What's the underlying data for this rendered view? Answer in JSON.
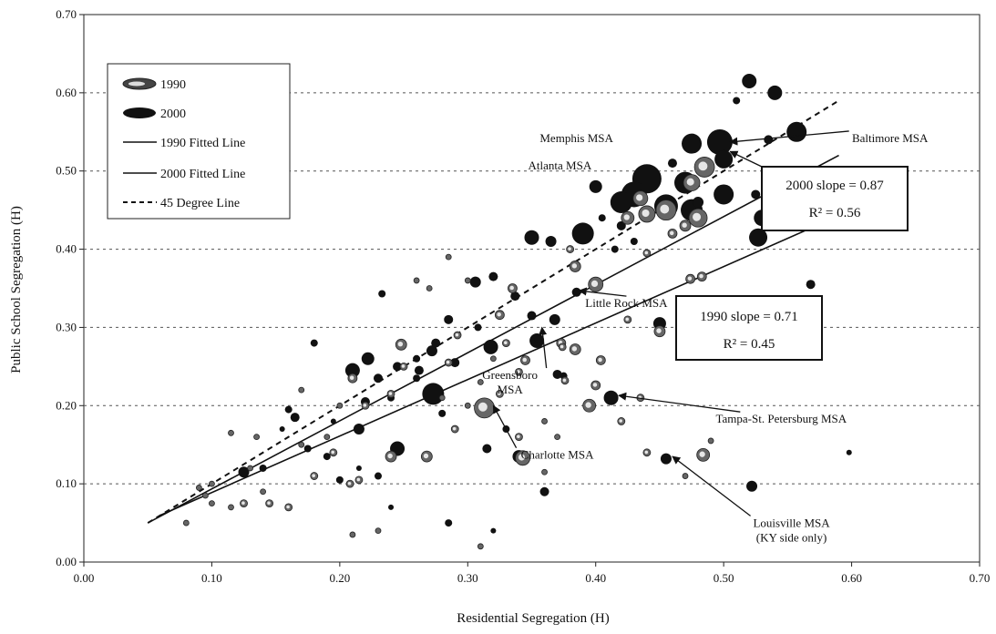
{
  "chart_data": {
    "type": "scatter",
    "title": "",
    "xlabel": "Residential Segregation (H)",
    "ylabel": "Public School Segregation (H)",
    "xlim": [
      0,
      0.7
    ],
    "ylim": [
      0,
      0.7
    ],
    "x_ticks": [
      "0.00",
      "0.10",
      "0.20",
      "0.30",
      "0.40",
      "0.50",
      "0.60",
      "0.70"
    ],
    "y_ticks": [
      "0.00",
      "0.10",
      "0.20",
      "0.30",
      "0.40",
      "0.50",
      "0.60",
      "0.70"
    ],
    "grid": "horizontal dashed",
    "legend": {
      "placement": "top-left",
      "entries": [
        "1990",
        "2000",
        "1990 Fitted Line",
        "2000 Fitted Line",
        "45 Degree Line"
      ]
    },
    "colors": {
      "points_2000": "#111111",
      "points_1990": "#666666",
      "lines": "#111111",
      "grid": "#555555"
    },
    "lines": [
      {
        "name": "1990 Fitted Line",
        "points": [
          [
            0.06,
            0.06
          ],
          [
            0.6,
            0.45
          ]
        ]
      },
      {
        "name": "2000 Fitted Line",
        "points": [
          [
            0.05,
            0.05
          ],
          [
            0.59,
            0.52
          ]
        ]
      },
      {
        "name": "45 Degree Line",
        "points": [
          [
            0.05,
            0.05
          ],
          [
            0.59,
            0.59
          ]
        ]
      }
    ],
    "series": [
      {
        "name": "2000",
        "points": [
          [
            0.52,
            0.615,
            8
          ],
          [
            0.54,
            0.6,
            8
          ],
          [
            0.51,
            0.59,
            4
          ],
          [
            0.557,
            0.55,
            11
          ],
          [
            0.497,
            0.537,
            14
          ],
          [
            0.475,
            0.535,
            11
          ],
          [
            0.535,
            0.54,
            5
          ],
          [
            0.44,
            0.49,
            16
          ],
          [
            0.43,
            0.47,
            14
          ],
          [
            0.42,
            0.46,
            12
          ],
          [
            0.47,
            0.485,
            12
          ],
          [
            0.5,
            0.47,
            11
          ],
          [
            0.5,
            0.515,
            10
          ],
          [
            0.475,
            0.45,
            12
          ],
          [
            0.455,
            0.455,
            13
          ],
          [
            0.4,
            0.48,
            7
          ],
          [
            0.53,
            0.44,
            9
          ],
          [
            0.527,
            0.415,
            10
          ],
          [
            0.39,
            0.42,
            12
          ],
          [
            0.35,
            0.415,
            8
          ],
          [
            0.365,
            0.41,
            6
          ],
          [
            0.525,
            0.47,
            5
          ],
          [
            0.415,
            0.4,
            4
          ],
          [
            0.45,
            0.305,
            7
          ],
          [
            0.35,
            0.315,
            5
          ],
          [
            0.368,
            0.31,
            6
          ],
          [
            0.354,
            0.283,
            8
          ],
          [
            0.385,
            0.345,
            5
          ],
          [
            0.4,
            0.35,
            4
          ],
          [
            0.318,
            0.275,
            8
          ],
          [
            0.306,
            0.358,
            6
          ],
          [
            0.32,
            0.365,
            5
          ],
          [
            0.337,
            0.34,
            5
          ],
          [
            0.355,
            0.285,
            4
          ],
          [
            0.308,
            0.3,
            4
          ],
          [
            0.273,
            0.215,
            12
          ],
          [
            0.272,
            0.27,
            6
          ],
          [
            0.275,
            0.28,
            5
          ],
          [
            0.285,
            0.31,
            5
          ],
          [
            0.21,
            0.245,
            8
          ],
          [
            0.222,
            0.26,
            7
          ],
          [
            0.245,
            0.145,
            8
          ],
          [
            0.233,
            0.343,
            4
          ],
          [
            0.215,
            0.17,
            6
          ],
          [
            0.245,
            0.25,
            5
          ],
          [
            0.262,
            0.245,
            5
          ],
          [
            0.26,
            0.26,
            4
          ],
          [
            0.22,
            0.205,
            5
          ],
          [
            0.23,
            0.235,
            5
          ],
          [
            0.24,
            0.21,
            4
          ],
          [
            0.412,
            0.21,
            8
          ],
          [
            0.455,
            0.132,
            6
          ],
          [
            0.522,
            0.097,
            6
          ],
          [
            0.568,
            0.355,
            5
          ],
          [
            0.598,
            0.14,
            3
          ],
          [
            0.34,
            0.135,
            7
          ],
          [
            0.315,
            0.145,
            5
          ],
          [
            0.36,
            0.09,
            5
          ],
          [
            0.33,
            0.17,
            4
          ],
          [
            0.37,
            0.24,
            5
          ],
          [
            0.375,
            0.238,
            4
          ],
          [
            0.165,
            0.185,
            5
          ],
          [
            0.18,
            0.28,
            4
          ],
          [
            0.175,
            0.145,
            4
          ],
          [
            0.285,
            0.05,
            4
          ],
          [
            0.32,
            0.04,
            3
          ],
          [
            0.125,
            0.115,
            6
          ],
          [
            0.14,
            0.12,
            4
          ],
          [
            0.16,
            0.195,
            4
          ],
          [
            0.155,
            0.17,
            3
          ],
          [
            0.19,
            0.135,
            4
          ],
          [
            0.195,
            0.18,
            3
          ],
          [
            0.2,
            0.105,
            4
          ],
          [
            0.26,
            0.235,
            4
          ],
          [
            0.28,
            0.19,
            4
          ],
          [
            0.29,
            0.255,
            5
          ],
          [
            0.23,
            0.11,
            4
          ],
          [
            0.215,
            0.12,
            3
          ],
          [
            0.24,
            0.07,
            3
          ],
          [
            0.48,
            0.46,
            6
          ],
          [
            0.42,
            0.43,
            5
          ],
          [
            0.43,
            0.41,
            4
          ],
          [
            0.405,
            0.44,
            4
          ],
          [
            0.46,
            0.51,
            5
          ]
        ]
      },
      {
        "name": "1990",
        "points": [
          [
            0.485,
            0.505,
            11
          ],
          [
            0.475,
            0.485,
            9
          ],
          [
            0.48,
            0.44,
            10
          ],
          [
            0.455,
            0.45,
            11
          ],
          [
            0.44,
            0.445,
            9
          ],
          [
            0.425,
            0.44,
            7
          ],
          [
            0.435,
            0.465,
            8
          ],
          [
            0.4,
            0.355,
            8
          ],
          [
            0.384,
            0.378,
            6
          ],
          [
            0.384,
            0.272,
            6
          ],
          [
            0.395,
            0.2,
            7
          ],
          [
            0.313,
            0.197,
            11
          ],
          [
            0.343,
            0.133,
            8
          ],
          [
            0.484,
            0.137,
            7
          ],
          [
            0.474,
            0.362,
            5
          ],
          [
            0.483,
            0.365,
            5
          ],
          [
            0.45,
            0.295,
            6
          ],
          [
            0.404,
            0.258,
            5
          ],
          [
            0.4,
            0.226,
            5
          ],
          [
            0.373,
            0.28,
            5
          ],
          [
            0.374,
            0.275,
            4
          ],
          [
            0.376,
            0.232,
            4
          ],
          [
            0.325,
            0.316,
            5
          ],
          [
            0.33,
            0.28,
            4
          ],
          [
            0.345,
            0.258,
            5
          ],
          [
            0.34,
            0.243,
            4
          ],
          [
            0.335,
            0.35,
            5
          ],
          [
            0.325,
            0.215,
            4
          ],
          [
            0.292,
            0.29,
            4
          ],
          [
            0.285,
            0.255,
            4
          ],
          [
            0.29,
            0.17,
            4
          ],
          [
            0.248,
            0.278,
            6
          ],
          [
            0.25,
            0.25,
            4
          ],
          [
            0.268,
            0.135,
            6
          ],
          [
            0.24,
            0.135,
            6
          ],
          [
            0.24,
            0.215,
            4
          ],
          [
            0.21,
            0.235,
            5
          ],
          [
            0.215,
            0.105,
            4
          ],
          [
            0.208,
            0.1,
            4
          ],
          [
            0.22,
            0.2,
            4
          ],
          [
            0.195,
            0.14,
            4
          ],
          [
            0.18,
            0.11,
            4
          ],
          [
            0.21,
            0.035,
            3
          ],
          [
            0.23,
            0.04,
            3
          ],
          [
            0.31,
            0.02,
            3
          ],
          [
            0.16,
            0.07,
            4
          ],
          [
            0.145,
            0.075,
            4
          ],
          [
            0.125,
            0.075,
            4
          ],
          [
            0.115,
            0.07,
            3
          ],
          [
            0.1,
            0.075,
            3
          ],
          [
            0.115,
            0.165,
            3
          ],
          [
            0.135,
            0.16,
            3
          ],
          [
            0.17,
            0.22,
            3
          ],
          [
            0.285,
            0.39,
            3
          ],
          [
            0.27,
            0.35,
            3
          ],
          [
            0.26,
            0.36,
            3
          ],
          [
            0.3,
            0.36,
            3
          ],
          [
            0.44,
            0.395,
            4
          ],
          [
            0.38,
            0.4,
            4
          ],
          [
            0.425,
            0.31,
            4
          ],
          [
            0.435,
            0.21,
            4
          ],
          [
            0.42,
            0.18,
            4
          ],
          [
            0.44,
            0.14,
            4
          ],
          [
            0.49,
            0.155,
            3
          ],
          [
            0.47,
            0.11,
            3
          ],
          [
            0.36,
            0.115,
            3
          ],
          [
            0.34,
            0.16,
            4
          ],
          [
            0.36,
            0.18,
            3
          ],
          [
            0.37,
            0.16,
            3
          ],
          [
            0.2,
            0.2,
            3
          ],
          [
            0.19,
            0.16,
            3
          ],
          [
            0.17,
            0.15,
            3
          ],
          [
            0.13,
            0.12,
            3
          ],
          [
            0.14,
            0.09,
            3
          ],
          [
            0.1,
            0.1,
            3
          ],
          [
            0.09,
            0.095,
            3
          ],
          [
            0.08,
            0.05,
            3
          ],
          [
            0.095,
            0.085,
            3
          ],
          [
            0.31,
            0.23,
            3
          ],
          [
            0.32,
            0.26,
            3
          ],
          [
            0.3,
            0.2,
            3
          ],
          [
            0.28,
            0.21,
            3
          ],
          [
            0.47,
            0.43,
            6
          ],
          [
            0.46,
            0.42,
            5
          ]
        ]
      }
    ],
    "annotations": [
      {
        "lines": [
          "Memphis MSA"
        ],
        "text_at": [
          0.385,
          0.537
        ],
        "anchor": "middle",
        "arrow_to": null
      },
      {
        "lines": [
          "Baltimore MSA"
        ],
        "text_at": [
          0.63,
          0.537
        ],
        "anchor": "middle",
        "arrow_to": [
          0.505,
          0.537
        ]
      },
      {
        "lines": [
          "Atlanta MSA"
        ],
        "text_at": [
          0.372,
          0.502
        ],
        "anchor": "middle",
        "arrow_to": null
      },
      {
        "lines": [
          "Little Rock MSA"
        ],
        "text_at": [
          0.424,
          0.326
        ],
        "anchor": "middle",
        "arrow_to": [
          0.387,
          0.347
        ]
      },
      {
        "lines": [
          "Greensboro",
          "MSA"
        ],
        "text_at": [
          0.333,
          0.234
        ],
        "anchor": "middle",
        "arrow_to": [
          0.358,
          0.3
        ]
      },
      {
        "lines": [
          "Tampa-St. Petersburg MSA"
        ],
        "text_at": [
          0.545,
          0.178
        ],
        "anchor": "middle",
        "arrow_to": [
          0.418,
          0.213
        ]
      },
      {
        "lines": [
          "Charlotte MSA"
        ],
        "text_at": [
          0.37,
          0.132
        ],
        "anchor": "middle",
        "arrow_to": [
          0.32,
          0.2
        ]
      },
      {
        "lines": [
          "Louisville MSA",
          "(KY side only)"
        ],
        "text_at": [
          0.553,
          0.045
        ],
        "anchor": "middle",
        "arrow_to": [
          0.46,
          0.135
        ]
      }
    ],
    "boxes": [
      {
        "lines": [
          "2000 slope = 0.87",
          "R² = 0.56"
        ],
        "arrow_to": [
          0.505,
          0.525
        ]
      },
      {
        "lines": [
          "1990 slope = 0.71",
          "R² = 0.45"
        ],
        "arrow_to": null
      }
    ]
  }
}
